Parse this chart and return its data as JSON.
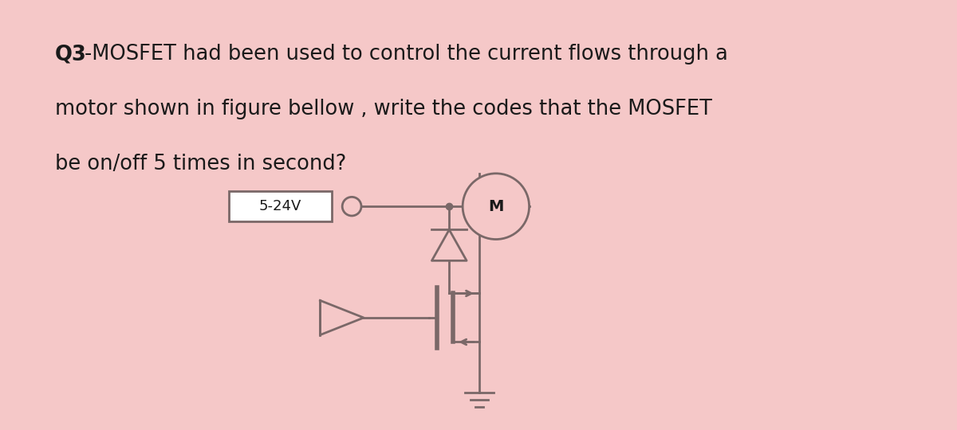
{
  "background_color": "#f5c8c8",
  "circuit_color": "#7a6868",
  "text_color": "#1a1a1a",
  "bold_prefix": "Q3",
  "line1": "-MOSFET had been used to control the current flows through a",
  "line2": "motor shown in figure bellow , write the codes that the MOSFET",
  "line3": "be on/off 5 times in second?",
  "voltage_label": "5-24V",
  "motor_label": "M",
  "lw": 2.0,
  "font_size": 18.5,
  "fig_width": 12.0,
  "fig_height": 5.4,
  "dpi": 100
}
